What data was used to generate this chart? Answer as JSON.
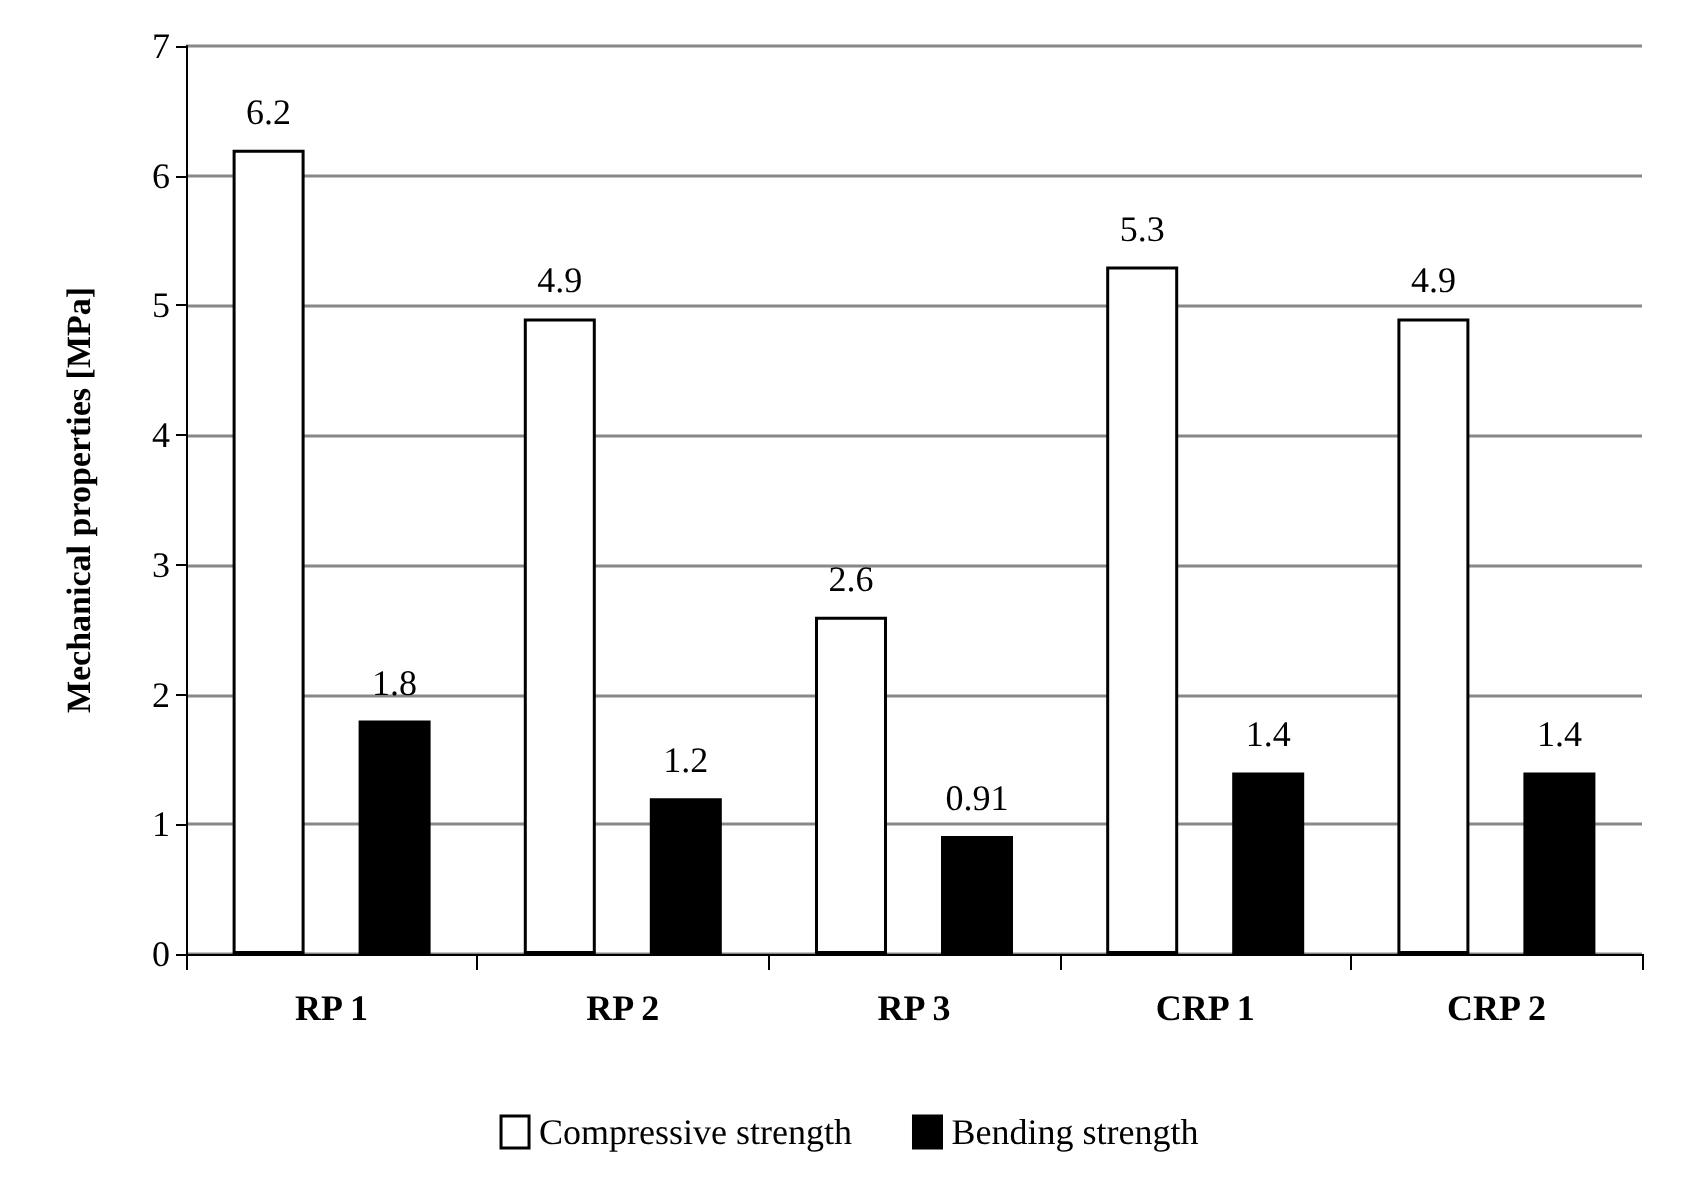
{
  "chart_data": {
    "type": "bar",
    "ylabel": "Mechanical properties [MPa]",
    "categories": [
      "RP 1",
      "RP 2",
      "RP 3",
      "CRP 1",
      "CRP 2"
    ],
    "series": [
      {
        "name": "Compressive strength",
        "color": "#ffffff",
        "values": [
          6.2,
          4.9,
          2.6,
          5.3,
          4.9
        ]
      },
      {
        "name": "Bending strength",
        "color": "#000000",
        "values": [
          1.8,
          1.2,
          0.91,
          1.4,
          1.4
        ]
      }
    ],
    "ylim": [
      0,
      7
    ],
    "yticks": [
      0,
      1,
      2,
      3,
      4,
      5,
      6,
      7
    ],
    "grid": "y",
    "legend": "bottom",
    "data_labels": true
  }
}
